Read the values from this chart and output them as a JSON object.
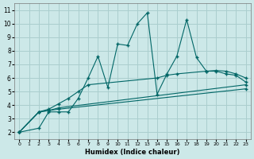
{
  "bg_color": "#cce8e8",
  "grid_color": "#aacece",
  "line_color": "#006666",
  "xlabel": "Humidex (Indice chaleur)",
  "xlim": [
    -0.5,
    23.5
  ],
  "ylim": [
    1.5,
    11.5
  ],
  "xticks": [
    0,
    1,
    2,
    3,
    4,
    5,
    6,
    7,
    8,
    9,
    10,
    11,
    12,
    13,
    14,
    15,
    16,
    17,
    18,
    19,
    20,
    21,
    22,
    23
  ],
  "yticks": [
    2,
    3,
    4,
    5,
    6,
    7,
    8,
    9,
    10,
    11
  ],
  "series": [
    {
      "x": [
        0,
        2,
        3,
        4,
        5,
        6,
        7,
        8,
        9,
        10,
        11,
        12,
        13,
        14,
        15,
        16,
        17,
        18,
        19,
        20,
        21,
        22,
        23
      ],
      "y": [
        2,
        2.3,
        3.5,
        3.5,
        3.5,
        4.5,
        6.0,
        7.6,
        5.3,
        8.5,
        8.4,
        10.0,
        10.8,
        4.8,
        6.3,
        7.6,
        10.3,
        7.5,
        6.5,
        6.5,
        6.3,
        6.2,
        5.7
      ]
    },
    {
      "x": [
        0,
        2,
        3,
        4,
        5,
        6,
        7,
        14,
        15,
        16,
        19,
        20,
        21,
        22,
        23
      ],
      "y": [
        2,
        3.5,
        3.7,
        4.1,
        4.5,
        5.0,
        5.5,
        6.0,
        6.2,
        6.3,
        6.5,
        6.55,
        6.5,
        6.3,
        6.0
      ]
    },
    {
      "x": [
        0,
        2,
        3,
        4,
        23
      ],
      "y": [
        2,
        3.5,
        3.6,
        3.8,
        5.5
      ]
    },
    {
      "x": [
        0,
        2,
        3,
        4,
        23
      ],
      "y": [
        2,
        3.5,
        3.6,
        3.7,
        5.2
      ]
    }
  ]
}
